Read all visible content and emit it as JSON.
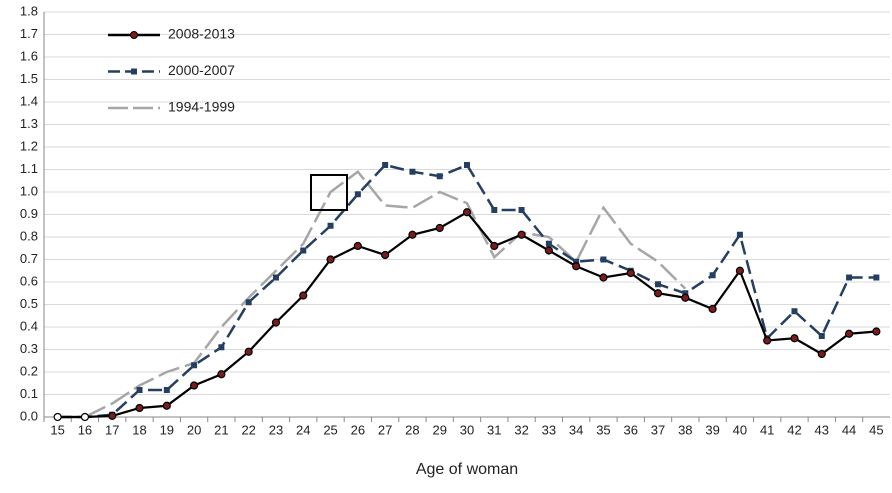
{
  "chart_data": {
    "type": "line",
    "x_label": "Age of woman",
    "categories": [
      "15",
      "16",
      "17",
      "18",
      "19",
      "20",
      "21",
      "22",
      "23",
      "24",
      "25",
      "26",
      "27",
      "28",
      "29",
      "30",
      "31",
      "32",
      "33",
      "34",
      "35",
      "36",
      "37",
      "38",
      "39",
      "40",
      "41",
      "42",
      "43",
      "44",
      "45"
    ],
    "series": [
      {
        "name": "2008-2013",
        "color": "#000000",
        "marker": "circle",
        "dash": "solid",
        "values": [
          0,
          0,
          0.005,
          0.04,
          0.05,
          0.14,
          0.19,
          0.29,
          0.42,
          0.54,
          0.7,
          0.76,
          0.72,
          0.81,
          0.84,
          0.91,
          0.76,
          0.81,
          0.74,
          0.67,
          0.62,
          0.64,
          0.55,
          0.53,
          0.48,
          0.65,
          0.34,
          0.35,
          0.28,
          0.37,
          0.38
        ]
      },
      {
        "name": "2000-2007",
        "color": "#243f60",
        "marker": "square",
        "dash": "dash",
        "values": [
          0,
          0,
          0.01,
          0.12,
          0.12,
          0.23,
          0.31,
          0.51,
          0.62,
          0.74,
          0.85,
          0.99,
          1.12,
          1.09,
          1.07,
          1.12,
          0.92,
          0.92,
          0.77,
          0.69,
          0.7,
          0.65,
          0.59,
          0.55,
          0.63,
          0.81,
          0.35,
          0.47,
          0.36,
          0.62,
          0.62
        ]
      },
      {
        "name": "1994-1999",
        "color": "#a6a6a6",
        "marker": "none",
        "dash": "longdash",
        "values": [
          0,
          0,
          0.06,
          0.14,
          0.2,
          0.24,
          0.4,
          0.53,
          0.65,
          0.77,
          1.0,
          1.09,
          0.94,
          0.93,
          1.0,
          0.95,
          0.71,
          0.82,
          0.8,
          0.69,
          0.93,
          0.77,
          0.69,
          0.57,
          null,
          null,
          null,
          null,
          null,
          null,
          null
        ]
      }
    ],
    "ylim": [
      0,
      1.8
    ],
    "yticks": [
      {
        "value": 0,
        "label": "0.0"
      },
      {
        "value": 0.1,
        "label": "0.1"
      },
      {
        "value": 0.2,
        "label": "0.2"
      },
      {
        "value": 0.3,
        "label": "0.3"
      },
      {
        "value": 0.4,
        "label": "0.4"
      },
      {
        "value": 0.5,
        "label": "0.5"
      },
      {
        "value": 0.6,
        "label": "0.6"
      },
      {
        "value": 0.7,
        "label": "0.7"
      },
      {
        "value": 0.8,
        "label": "0.8"
      },
      {
        "value": 0.9,
        "label": "0.9"
      },
      {
        "value": 1,
        "label": "1.0"
      },
      {
        "value": 1.1,
        "label": "1.1"
      },
      {
        "value": 1.2,
        "label": "1.2"
      },
      {
        "value": 1.3,
        "label": "1.3"
      },
      {
        "value": 1.4,
        "label": "1.4"
      },
      {
        "value": 1.5,
        "label": "1.5"
      },
      {
        "value": 1.6,
        "label": "1.6"
      },
      {
        "value": 1.7,
        "label": "1.7"
      },
      {
        "value": 1.8,
        "label": "1.8"
      }
    ],
    "grid": true
  }
}
